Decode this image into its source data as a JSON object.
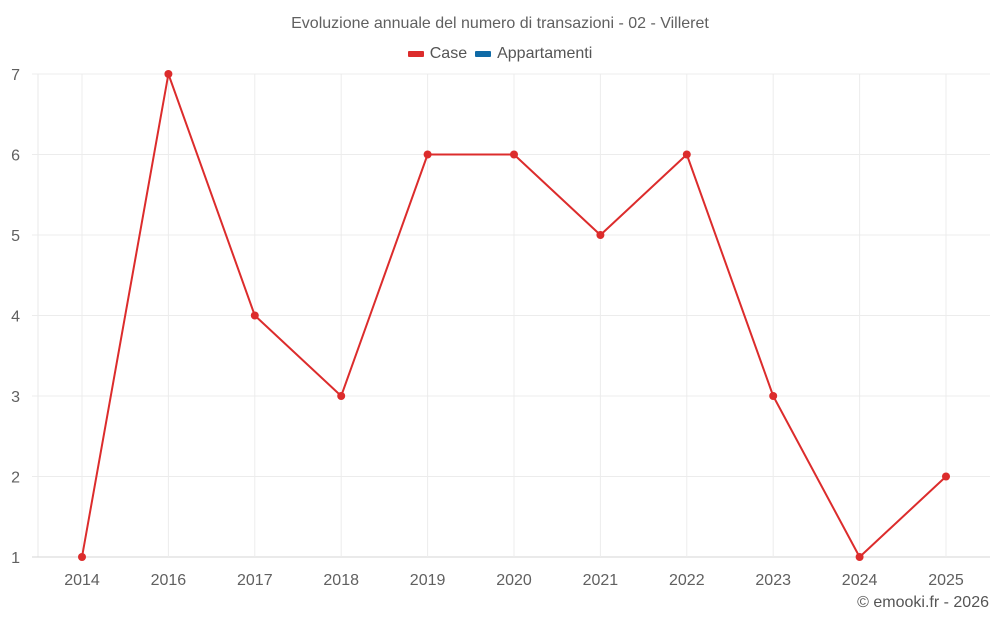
{
  "title": "Evoluzione annuale del numero di transazioni - 02 - Villeret",
  "legend": [
    {
      "label": "Case",
      "color": "#dc2c2c"
    },
    {
      "label": "Appartamenti",
      "color": "#0f6aa6"
    }
  ],
  "credit": "© emooki.fr - 2026",
  "chart_data": {
    "type": "line",
    "title": "Evoluzione annuale del numero di transazioni - 02 - Villeret",
    "xlabel": "",
    "ylabel": "",
    "categories": [
      "2014",
      "2016",
      "2017",
      "2018",
      "2019",
      "2020",
      "2021",
      "2022",
      "2023",
      "2024",
      "2025"
    ],
    "series": [
      {
        "name": "Case",
        "color": "#dc2c2c",
        "values": [
          1,
          7,
          4,
          3,
          6,
          6,
          5,
          6,
          3,
          1,
          2
        ]
      },
      {
        "name": "Appartamenti",
        "color": "#0f6aa6",
        "values": []
      }
    ],
    "yticks": [
      1,
      2,
      3,
      4,
      5,
      6,
      7
    ],
    "ylim": [
      1,
      7
    ],
    "grid": true,
    "legend_position": "top"
  }
}
